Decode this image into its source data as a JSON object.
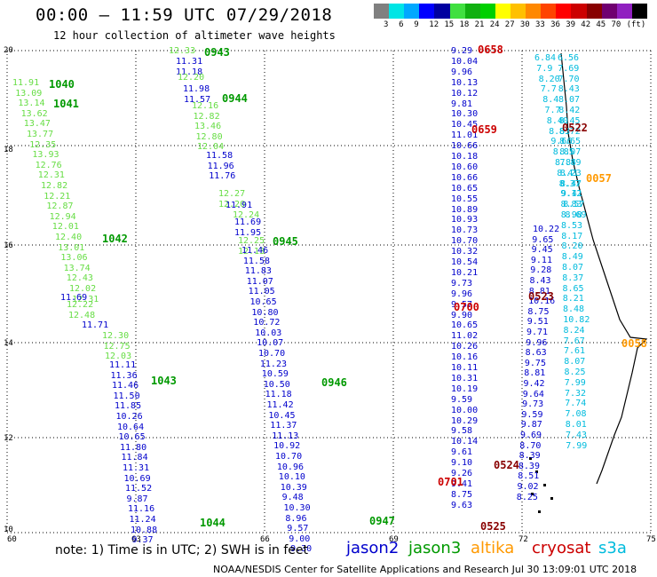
{
  "header": {
    "title": "00:00 – 11:59 UTC 07/29/2018",
    "subtitle": "12 hour collection of altimeter wave heights"
  },
  "legend": {
    "colors": [
      "#808080",
      "#00e5e5",
      "#00a8ff",
      "#0000ff",
      "#0000a0",
      "#40e040",
      "#10b010",
      "#00d000",
      "#ffff00",
      "#ffc000",
      "#ff8800",
      "#ff4400",
      "#ff0000",
      "#cc0000",
      "#880000",
      "#700070",
      "#9020c0",
      "#000000"
    ],
    "ticks": [
      "3",
      "6",
      "9",
      "12",
      "15",
      "18",
      "21",
      "24",
      "27",
      "30",
      "33",
      "36",
      "39",
      "42",
      "45",
      "70",
      "(ft)"
    ]
  },
  "axes": {
    "x_ticks": [
      "60",
      "63",
      "66",
      "69",
      "72",
      "75"
    ],
    "y_ticks": [
      "20",
      "18",
      "16",
      "14",
      "12",
      "10"
    ]
  },
  "colors": {
    "jason2": "#0000cc",
    "jason3": "#009900",
    "jason3_light": "#66dd44",
    "altika": "#ff9900",
    "cryosat": "#cc0000",
    "s3a": "#00bbdd",
    "dark_red": "#880000"
  },
  "tracks": [
    {
      "sat": "jason3l",
      "values": [
        "11.91",
        "13.09",
        "13.14",
        "13.62",
        "13.47",
        "13.77",
        "12.35",
        "13.93",
        "12.76",
        "12.31",
        "12.82",
        "12.21",
        "12.87",
        "12.94",
        "12.01",
        "12.40",
        "13.01",
        "13.06",
        "13.74",
        "12.43",
        "12.02",
        "12.31"
      ]
    },
    {
      "sat": "jason2",
      "values": [
        "11.69"
      ]
    },
    {
      "sat": "jason3l",
      "values": [
        "12.22",
        "12.48"
      ]
    },
    {
      "sat": "jason2",
      "values": [
        "11.71"
      ]
    },
    {
      "sat": "jason3l",
      "values": [
        "12.30",
        "12.75",
        "12.03"
      ]
    },
    {
      "sat": "jason2",
      "values": [
        "11.11",
        "11.36",
        "11.46",
        "11.50",
        "11.85",
        "10.26",
        "10.64",
        "10.65",
        "11.80",
        "11.84",
        "11.31",
        "10.69",
        "11.52",
        "9.87",
        "11.16",
        "11.24",
        "10.88",
        "9.37"
      ]
    },
    {
      "sat": "jason3l",
      "values": [
        "12.33"
      ]
    },
    {
      "sat": "jason2",
      "values": [
        "11.31",
        "11.18"
      ]
    },
    {
      "sat": "jason3l",
      "values": [
        "12.20"
      ]
    },
    {
      "sat": "jason2",
      "values": [
        "11.98",
        "11.57"
      ]
    },
    {
      "sat": "jason3l",
      "values": [
        "12.16",
        "12.82",
        "13.46",
        "12.80",
        "12.04"
      ]
    },
    {
      "sat": "jason2",
      "values": [
        "11.58",
        "11.96",
        "11.76"
      ]
    },
    {
      "sat": "jason3l",
      "values": [
        "12.27",
        "12.20"
      ]
    },
    {
      "sat": "jason2",
      "values": [
        "11.91"
      ]
    },
    {
      "sat": "jason3l",
      "values": [
        "12.24"
      ]
    },
    {
      "sat": "jason2",
      "values": [
        "11.69",
        "11.95"
      ]
    },
    {
      "sat": "jason3l",
      "values": [
        "12.25",
        "12.13"
      ]
    },
    {
      "sat": "jason2",
      "values": [
        "11.46",
        "11.58",
        "11.83",
        "11.07",
        "11.05",
        "10.65",
        "10.80",
        "10.72",
        "10.03",
        "10.07",
        "10.70",
        "11.23",
        "10.59",
        "10.50",
        "11.18",
        "11.42",
        "10.45",
        "11.37",
        "11.13",
        "10.92",
        "10.70",
        "10.96",
        "10.10",
        "10.39",
        "9.48",
        "10.30",
        "8.96",
        "9.57",
        "9.00",
        "9.30"
      ]
    },
    {
      "sat": "jason2",
      "values": [
        "9.29",
        "10.04",
        "9.96",
        "10.13",
        "10.12",
        "9.81",
        "10.30",
        "10.45",
        "11.01",
        "10.66",
        "10.18",
        "10.60",
        "10.66",
        "10.65",
        "10.55",
        "10.89",
        "10.93",
        "10.73",
        "10.70",
        "10.32",
        "10.54",
        "10.21",
        "9.73",
        "9.96",
        "9.57",
        "9.90",
        "10.65",
        "11.02",
        "10.26",
        "10.16",
        "10.11",
        "10.31",
        "10.19",
        "9.59",
        "10.00",
        "10.29",
        "9.58",
        "10.14",
        "9.61",
        "9.10",
        "9.26",
        "9.41",
        "8.75",
        "9.63"
      ]
    },
    {
      "sat": "jason2",
      "values": [
        "10.22",
        "9.65",
        "9.45",
        "9.11",
        "9.28",
        "8.43",
        "8.81",
        "10.16",
        "8.75",
        "9.51",
        "9.71",
        "9.96",
        "8.63",
        "9.75",
        "8.81",
        "9.42",
        "9.64",
        "9.73",
        "9.59",
        "9.87",
        "9.69",
        "8.70",
        "8.39",
        "8.39",
        "8.51",
        "9.02",
        "8.25"
      ]
    },
    {
      "sat": "s3a",
      "values": [
        "6.84",
        "7.9",
        "8.20",
        "7.7",
        "8.4",
        "7.7",
        "8.40",
        "8.83",
        "9.66",
        "8.85",
        "8.84",
        "8.41",
        "8.37",
        "9.41",
        "8.57",
        "8.69"
      ]
    },
    {
      "sat": "s3a",
      "values": [
        "6.56",
        "7.69",
        "7.70",
        "8.43",
        "8.07",
        "8.42",
        "8.45",
        "8.72",
        "8.65",
        "8.07",
        "7.89",
        "8.23",
        "8.47",
        "9.12",
        "8.83",
        "8.98",
        "8.53",
        "8.17",
        "8.20",
        "8.49",
        "8.07",
        "8.37",
        "8.65",
        "8.21",
        "8.48",
        "10.82",
        "8.24",
        "7.67",
        "7.61",
        "8.07",
        "8.25",
        "7.99",
        "7.32",
        "7.74",
        "7.08",
        "8.01",
        "7.43",
        "7.99"
      ]
    }
  ],
  "time_labels": [
    {
      "text": "1040",
      "sat": "jason3"
    },
    {
      "text": "1041",
      "sat": "jason3"
    },
    {
      "text": "1042",
      "sat": "jason3"
    },
    {
      "text": "1043",
      "sat": "jason3"
    },
    {
      "text": "1044",
      "sat": "jason3"
    },
    {
      "text": "0943",
      "sat": "jason3"
    },
    {
      "text": "0944",
      "sat": "jason3"
    },
    {
      "text": "0945",
      "sat": "jason3"
    },
    {
      "text": "0946",
      "sat": "jason3"
    },
    {
      "text": "0947",
      "sat": "jason3"
    },
    {
      "text": "0658",
      "sat": "cryosat"
    },
    {
      "text": "0659",
      "sat": "cryosat"
    },
    {
      "text": "0700",
      "sat": "cryosat"
    },
    {
      "text": "0701",
      "sat": "cryosat"
    },
    {
      "text": "0522",
      "sat": "dark"
    },
    {
      "text": "0523",
      "sat": "dark"
    },
    {
      "text": "0524",
      "sat": "dark"
    },
    {
      "text": "0525",
      "sat": "dark"
    },
    {
      "text": "0057",
      "sat": "altika"
    },
    {
      "text": "0058",
      "sat": "altika"
    }
  ],
  "footer": {
    "note": "note: 1) Time is in UTC; 2) SWH is in feet",
    "satellites": [
      "jason2",
      "jason3",
      "altika",
      "cryosat",
      "s3a"
    ],
    "credit": "NOAA/NESDIS Center for Satellite Applications and Research   Jul 30 13:09:01 UTC 2018"
  }
}
